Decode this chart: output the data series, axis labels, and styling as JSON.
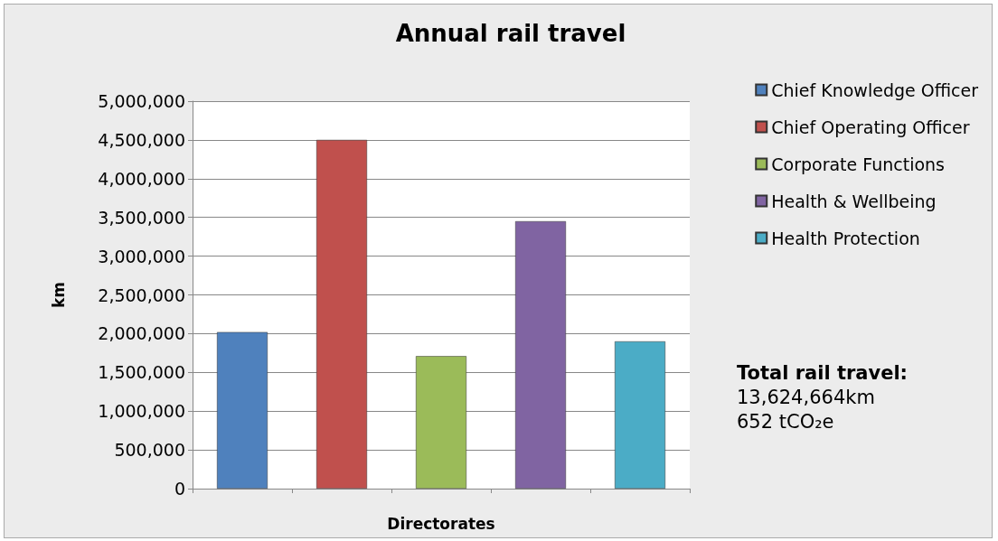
{
  "chart_data": {
    "type": "bar",
    "title": "Annual rail travel",
    "xlabel": "Directorates",
    "ylabel": "km",
    "categories": [
      null,
      null,
      null,
      null,
      null
    ],
    "series": [
      {
        "name": "Chief Knowledge Officer",
        "color": "#4f81bd",
        "values": [
          2020000,
          null,
          null,
          null,
          null
        ]
      },
      {
        "name": "Chief Operating Officer",
        "color": "#c0504d",
        "values": [
          null,
          4500000,
          null,
          null,
          null
        ]
      },
      {
        "name": "Corporate Functions",
        "color": "#9bbb59",
        "values": [
          null,
          null,
          1710000,
          null,
          null
        ]
      },
      {
        "name": "Health & Wellbeing",
        "color": "#8064a2",
        "values": [
          null,
          null,
          null,
          3450000,
          null
        ]
      },
      {
        "name": "Health Protection",
        "color": "#4bacc6",
        "values": [
          null,
          null,
          null,
          null,
          1900000
        ]
      }
    ],
    "ylim": [
      0,
      5000000
    ],
    "yticks": [
      0,
      {
        "value": 500000,
        "label": "500,000"
      },
      {
        "value": 1000000,
        "label": "1,000,000"
      },
      {
        "value": 1500000,
        "label": "1,500,000"
      },
      {
        "value": 2000000,
        "label": "2,000,000"
      },
      {
        "value": 2500000,
        "label": "2,500,000"
      },
      {
        "value": 3000000,
        "label": "3,000,000"
      },
      {
        "value": 3500000,
        "label": "3,500,000"
      },
      {
        "value": 4000000,
        "label": "4,000,000"
      },
      {
        "value": 4500000,
        "label": "4,500,000"
      },
      {
        "value": 5000000,
        "label": "5,000,000"
      }
    ],
    "grid": "y",
    "legend": "right",
    "annotations": [
      "Total rail travel:",
      "13,624,664km",
      "652 tCO₂e"
    ]
  }
}
